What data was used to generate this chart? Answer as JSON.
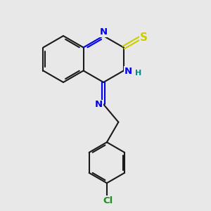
{
  "background_color": "#e8e8e8",
  "bond_color": "#1a1a1a",
  "N_color": "#0000ee",
  "S_color": "#cccc00",
  "Cl_color": "#228b22",
  "H_color": "#008888",
  "figsize": [
    3.0,
    3.0
  ],
  "dpi": 100,
  "xlim": [
    0,
    10
  ],
  "ylim": [
    0,
    10
  ]
}
